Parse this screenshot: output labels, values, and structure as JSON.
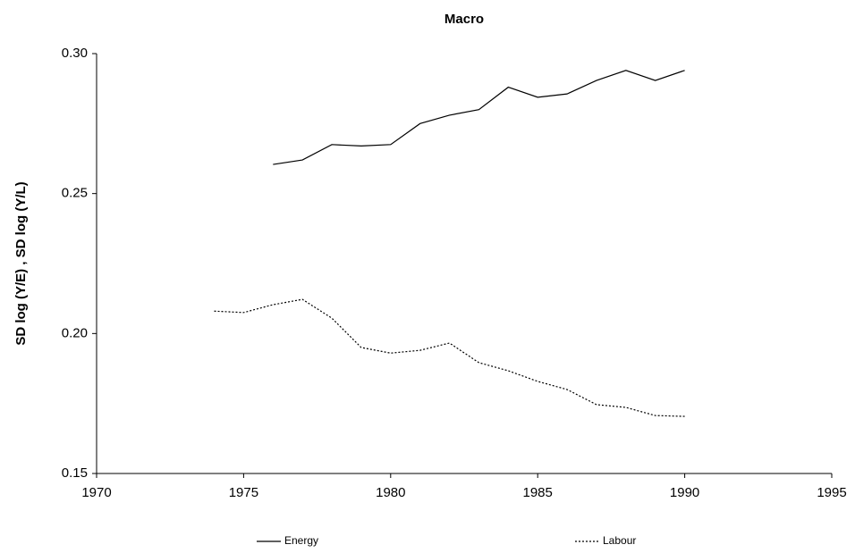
{
  "chart_data": {
    "type": "line",
    "title": "Macro",
    "y_label": "SD log (Y/E)  ,  SD log (Y/L)",
    "xlim": [
      1970,
      1995
    ],
    "xticks": [
      1970,
      1975,
      1980,
      1985,
      1990,
      1995
    ],
    "ylim": [
      0.15,
      0.3
    ],
    "yticks": [
      {
        "value": 0.15,
        "label": "0.15"
      },
      {
        "value": 0.2,
        "label": "0.20"
      },
      {
        "value": 0.25,
        "label": "0.25"
      },
      {
        "value": 0.3,
        "label": "0.30"
      }
    ],
    "series": [
      {
        "name": "Energy",
        "color": "#000000",
        "dash": "solid",
        "x": [
          1976,
          1977,
          1978,
          1979,
          1980,
          1981,
          1982,
          1983,
          1984,
          1985,
          1986,
          1987,
          1988,
          1989,
          1990
        ],
        "values": [
          0.2604,
          0.262,
          0.2675,
          0.267,
          0.2675,
          0.275,
          0.278,
          0.28,
          0.288,
          0.2844,
          0.2856,
          0.2904,
          0.294,
          0.2904,
          0.294
        ]
      },
      {
        "name": "Labour",
        "color": "#000000",
        "dash": "dotted",
        "x": [
          1974,
          1975,
          1976,
          1977,
          1978,
          1979,
          1980,
          1981,
          1982,
          1983,
          1984,
          1985,
          1986,
          1987,
          1988,
          1989,
          1990
        ],
        "values": [
          0.208,
          0.2075,
          0.2103,
          0.2122,
          0.2055,
          0.195,
          0.193,
          0.194,
          0.1966,
          0.1896,
          0.1867,
          0.1829,
          0.18,
          0.1746,
          0.1736,
          0.1707,
          0.1704
        ]
      }
    ]
  }
}
